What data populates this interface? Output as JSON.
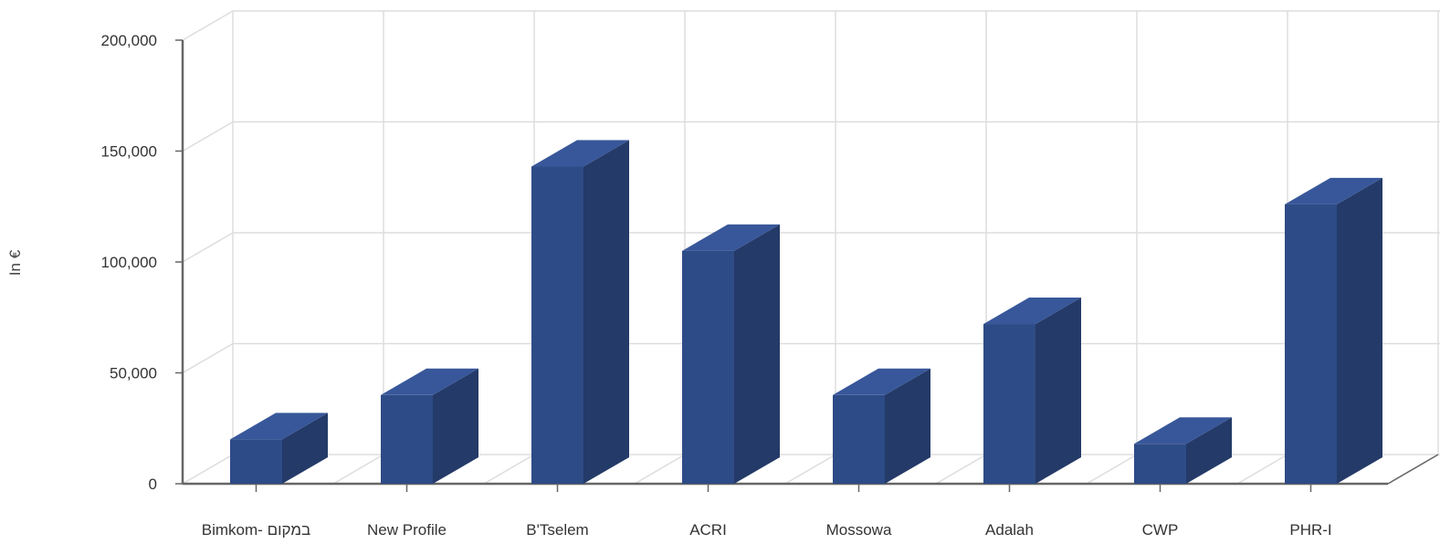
{
  "chart_data": {
    "type": "bar",
    "ylabel": "In €",
    "xlabel": "",
    "title": "",
    "ylim": [
      0,
      200000
    ],
    "y_ticks": [
      0,
      50000,
      100000,
      150000,
      200000
    ],
    "y_tick_labels": [
      "0",
      "50,000",
      "100,000",
      "150,000",
      "200,000"
    ],
    "categories": [
      "Bimkom- במקום",
      "New Profile",
      "B'Tselem",
      "ACRI",
      "Mossowa",
      "Adalah",
      "CWP",
      "PHR-I"
    ],
    "values": [
      20000,
      40000,
      143000,
      105000,
      40000,
      72000,
      18000,
      126000
    ],
    "grid": true,
    "legend": "none",
    "style": "3d-column",
    "colors": {
      "bar_front": "#2d4b86",
      "bar_side": "#243a68",
      "bar_top": "#38579a",
      "grid": "#dddddd",
      "axis": "#666666"
    }
  }
}
